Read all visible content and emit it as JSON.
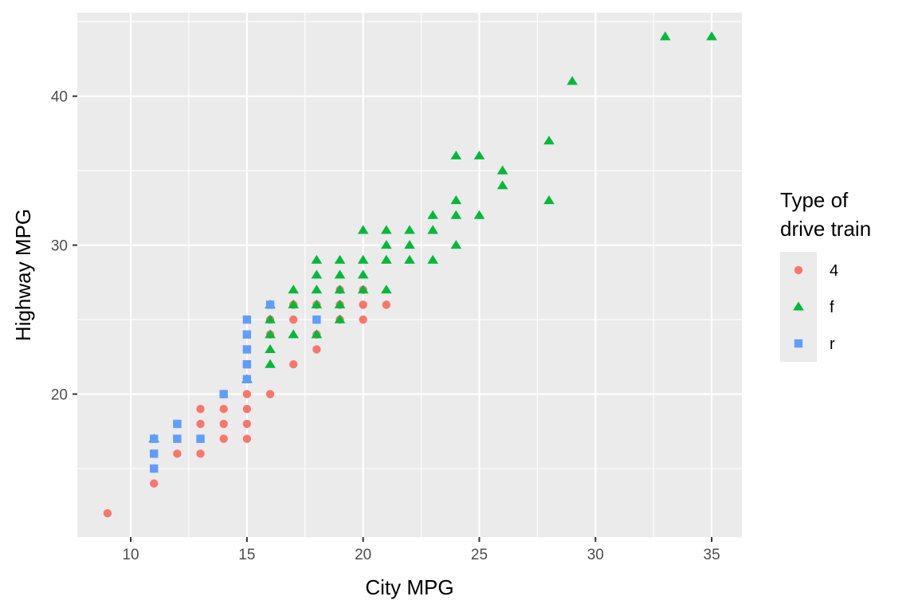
{
  "chart_data": {
    "type": "scatter",
    "xlabel": "City MPG",
    "ylabel": "Highway MPG",
    "xlim": [
      7.7,
      36.3
    ],
    "ylim": [
      10.4,
      45.6
    ],
    "x_ticks": [
      10,
      15,
      20,
      25,
      30,
      35
    ],
    "y_ticks": [
      20,
      30,
      40
    ],
    "grid": true,
    "legend": {
      "title_lines": [
        "Type of",
        "drive train"
      ],
      "placement": "right",
      "entries": [
        {
          "label": "4",
          "shape": "circle",
          "color": "#F8766D"
        },
        {
          "label": "f",
          "shape": "triangle",
          "color": "#00BA38"
        },
        {
          "label": "r",
          "shape": "square",
          "color": "#619CFF"
        }
      ]
    },
    "series": [
      {
        "name": "4",
        "shape": "circle",
        "color": "#F8766D",
        "points": [
          [
            9,
            12
          ],
          [
            11,
            14
          ],
          [
            11,
            15
          ],
          [
            11,
            17
          ],
          [
            12,
            16
          ],
          [
            12,
            18
          ],
          [
            13,
            16
          ],
          [
            13,
            17
          ],
          [
            13,
            18
          ],
          [
            13,
            19
          ],
          [
            14,
            17
          ],
          [
            14,
            18
          ],
          [
            14,
            19
          ],
          [
            14,
            20
          ],
          [
            15,
            17
          ],
          [
            15,
            18
          ],
          [
            15,
            19
          ],
          [
            15,
            20
          ],
          [
            15,
            21
          ],
          [
            15,
            22
          ],
          [
            16,
            20
          ],
          [
            16,
            24
          ],
          [
            16,
            25
          ],
          [
            17,
            22
          ],
          [
            17,
            25
          ],
          [
            17,
            26
          ],
          [
            18,
            23
          ],
          [
            18,
            24
          ],
          [
            18,
            25
          ],
          [
            18,
            26
          ],
          [
            19,
            25
          ],
          [
            19,
            26
          ],
          [
            19,
            27
          ],
          [
            20,
            25
          ],
          [
            20,
            26
          ],
          [
            20,
            27
          ],
          [
            21,
            26
          ]
        ]
      },
      {
        "name": "f",
        "shape": "triangle",
        "color": "#00BA38",
        "points": [
          [
            11,
            17
          ],
          [
            15,
            21
          ],
          [
            16,
            22
          ],
          [
            16,
            23
          ],
          [
            16,
            24
          ],
          [
            16,
            25
          ],
          [
            16,
            26
          ],
          [
            17,
            24
          ],
          [
            17,
            26
          ],
          [
            17,
            27
          ],
          [
            18,
            24
          ],
          [
            18,
            26
          ],
          [
            18,
            27
          ],
          [
            18,
            28
          ],
          [
            18,
            29
          ],
          [
            19,
            25
          ],
          [
            19,
            26
          ],
          [
            19,
            27
          ],
          [
            19,
            28
          ],
          [
            19,
            29
          ],
          [
            20,
            27
          ],
          [
            20,
            28
          ],
          [
            20,
            29
          ],
          [
            20,
            31
          ],
          [
            21,
            27
          ],
          [
            21,
            29
          ],
          [
            21,
            30
          ],
          [
            21,
            31
          ],
          [
            22,
            29
          ],
          [
            22,
            30
          ],
          [
            22,
            31
          ],
          [
            23,
            29
          ],
          [
            23,
            31
          ],
          [
            23,
            32
          ],
          [
            24,
            30
          ],
          [
            24,
            32
          ],
          [
            24,
            33
          ],
          [
            24,
            36
          ],
          [
            25,
            32
          ],
          [
            25,
            36
          ],
          [
            26,
            34
          ],
          [
            26,
            35
          ],
          [
            28,
            33
          ],
          [
            28,
            37
          ],
          [
            29,
            41
          ],
          [
            33,
            44
          ],
          [
            35,
            44
          ]
        ]
      },
      {
        "name": "r",
        "shape": "square",
        "color": "#619CFF",
        "points": [
          [
            11,
            15
          ],
          [
            11,
            16
          ],
          [
            11,
            17
          ],
          [
            12,
            17
          ],
          [
            12,
            18
          ],
          [
            13,
            17
          ],
          [
            14,
            20
          ],
          [
            15,
            21
          ],
          [
            15,
            22
          ],
          [
            15,
            23
          ],
          [
            15,
            24
          ],
          [
            15,
            25
          ],
          [
            16,
            26
          ],
          [
            18,
            25
          ]
        ]
      }
    ]
  }
}
